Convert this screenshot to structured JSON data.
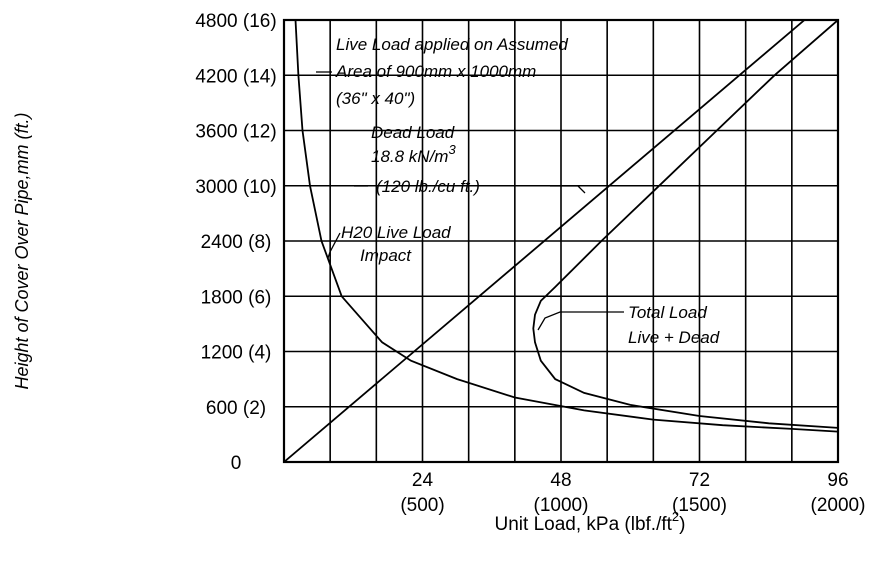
{
  "chart_data": {
    "type": "line",
    "title": "",
    "xlabel_main": "Unit Load,  kPa (lbf./ft",
    "xlabel_sup": "2",
    "xlabel_close": ")",
    "ylabel": "Height of Cover Over Pipe,mm (ft.)",
    "xlim": [
      0,
      96
    ],
    "ylim": [
      0,
      4800
    ],
    "grid": true,
    "x_ticks": [
      {
        "value": 24,
        "label": "24",
        "sublabel": "(500)"
      },
      {
        "value": 48,
        "label": "48",
        "sublabel": "(1000)"
      },
      {
        "value": 72,
        "label": "72",
        "sublabel": "(1500)"
      },
      {
        "value": 96,
        "label": "96",
        "sublabel": "(2000)"
      }
    ],
    "y_ticks": [
      {
        "value": 0,
        "label": "0"
      },
      {
        "value": 600,
        "label": "600 (2)"
      },
      {
        "value": 1200,
        "label": "1200 (4)"
      },
      {
        "value": 1800,
        "label": "1800 (6)"
      },
      {
        "value": 2400,
        "label": "2400 (8)"
      },
      {
        "value": 3000,
        "label": "3000 (10)"
      },
      {
        "value": 3600,
        "label": "3600 (12)"
      },
      {
        "value": 4200,
        "label": "4200 (14)"
      },
      {
        "value": 4800,
        "label": "4800 (16)"
      }
    ],
    "series": [
      {
        "key": "live",
        "points": [
          [
            2.0,
            4800
          ],
          [
            2.5,
            4200
          ],
          [
            3.2,
            3600
          ],
          [
            4.5,
            3000
          ],
          [
            6.5,
            2400
          ],
          [
            10.0,
            1800
          ],
          [
            17.0,
            1300
          ],
          [
            22.0,
            1100
          ],
          [
            30.0,
            900
          ],
          [
            40.0,
            700
          ],
          [
            52.0,
            560
          ],
          [
            64.0,
            460
          ],
          [
            76.0,
            400
          ],
          [
            88.0,
            360
          ],
          [
            96.0,
            330
          ]
        ]
      },
      {
        "key": "dead",
        "points": [
          [
            0,
            0
          ],
          [
            90.2,
            4800
          ]
        ]
      },
      {
        "key": "total",
        "points": [
          [
            96.0,
            4800
          ],
          [
            85.0,
            4200
          ],
          [
            75.0,
            3600
          ],
          [
            65.0,
            3000
          ],
          [
            55.0,
            2400
          ],
          [
            47.0,
            1900
          ],
          [
            44.5,
            1750
          ],
          [
            43.5,
            1600
          ],
          [
            43.2,
            1450
          ],
          [
            43.5,
            1300
          ],
          [
            44.5,
            1100
          ],
          [
            47.0,
            900
          ],
          [
            52.0,
            750
          ],
          [
            60.0,
            620
          ],
          [
            72.0,
            500
          ],
          [
            84.0,
            420
          ],
          [
            96.0,
            370
          ]
        ]
      }
    ],
    "annotations": [
      {
        "key": "live_area",
        "lines": [
          "Live Load applied on Assumed",
          "Area of 900mm  x  1000mm",
          "(36\" x 40\")"
        ]
      },
      {
        "key": "dead_load",
        "lines": [
          "Dead Load",
          "18.8  kN/m",
          "(120  lb./cu ft.)"
        ],
        "sup": "3"
      },
      {
        "key": "h20",
        "lines": [
          "H20 Live Load",
          "Impact"
        ]
      },
      {
        "key": "total_load",
        "lines": [
          "Total Load",
          "Live + Dead"
        ]
      }
    ]
  }
}
